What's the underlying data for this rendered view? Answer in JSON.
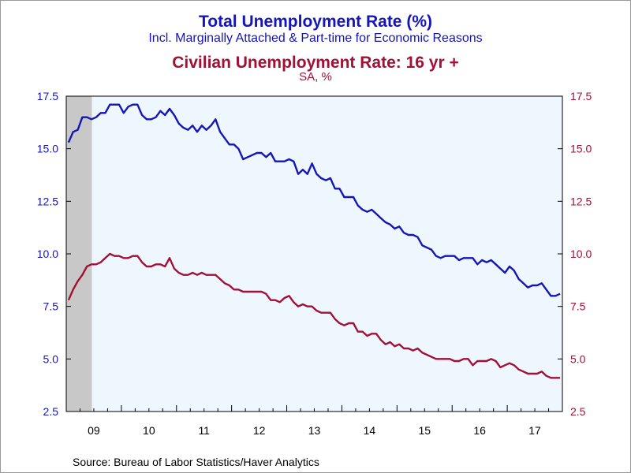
{
  "chart_data": {
    "type": "line",
    "title": "Total Unemployment Rate (%)",
    "subtitle": "Incl. Marginally Attached & Part-time for Economic Reasons",
    "title2": "Civilian Unemployment Rate: 16 yr +",
    "subtitle2": "SA, %",
    "source": "Source:  Bureau of Labor Statistics/Haver Analytics",
    "x_labels": [
      "09",
      "10",
      "11",
      "12",
      "13",
      "14",
      "15",
      "16",
      "17"
    ],
    "y_ticks": [
      "17.5",
      "15.0",
      "12.5",
      "10.0",
      "7.5",
      "5.0",
      "2.5"
    ],
    "ylim": [
      2.5,
      17.5
    ],
    "x_start": "2009-01",
    "x_end": "2017-12",
    "recession_shade": [
      "2009-01",
      "2009-06"
    ],
    "colors": {
      "total": "#1515b8",
      "civilian": "#a31035",
      "plot_bg": "#eef6fe",
      "shade": "#c8c8c8"
    },
    "series": [
      {
        "name": "Total Unemployment Rate (%)",
        "axis": "left",
        "color": "#1515b8",
        "values": [
          15.3,
          15.8,
          15.9,
          16.5,
          16.5,
          16.4,
          16.5,
          16.7,
          16.7,
          17.1,
          17.1,
          17.1,
          16.7,
          17.0,
          17.1,
          17.1,
          16.6,
          16.4,
          16.4,
          16.5,
          16.8,
          16.6,
          16.9,
          16.6,
          16.2,
          16.0,
          15.9,
          16.1,
          15.8,
          16.1,
          15.9,
          16.1,
          16.4,
          15.8,
          15.5,
          15.2,
          15.2,
          15.0,
          14.5,
          14.6,
          14.7,
          14.8,
          14.8,
          14.6,
          14.8,
          14.4,
          14.4,
          14.4,
          14.5,
          14.4,
          13.8,
          14.0,
          13.8,
          14.3,
          13.8,
          13.6,
          13.5,
          13.6,
          13.1,
          13.1,
          12.7,
          12.7,
          12.7,
          12.3,
          12.1,
          12.0,
          12.1,
          11.9,
          11.7,
          11.5,
          11.4,
          11.2,
          11.3,
          11.0,
          10.9,
          10.9,
          10.8,
          10.4,
          10.3,
          10.2,
          9.9,
          9.8,
          9.9,
          9.9,
          9.9,
          9.7,
          9.8,
          9.8,
          9.8,
          9.5,
          9.7,
          9.6,
          9.7,
          9.5,
          9.3,
          9.1,
          9.4,
          9.2,
          8.8,
          8.6,
          8.4,
          8.5,
          8.5,
          8.6,
          8.3,
          8.0,
          8.0,
          8.1
        ]
      },
      {
        "name": "Civilian Unemployment Rate: 16 yr +",
        "axis": "right",
        "color": "#a31035",
        "values": [
          7.8,
          8.3,
          8.7,
          9.0,
          9.4,
          9.5,
          9.5,
          9.6,
          9.8,
          10.0,
          9.9,
          9.9,
          9.8,
          9.8,
          9.9,
          9.9,
          9.6,
          9.4,
          9.4,
          9.5,
          9.5,
          9.4,
          9.8,
          9.3,
          9.1,
          9.0,
          9.0,
          9.1,
          9.0,
          9.1,
          9.0,
          9.0,
          9.0,
          8.8,
          8.6,
          8.5,
          8.3,
          8.3,
          8.2,
          8.2,
          8.2,
          8.2,
          8.2,
          8.1,
          7.8,
          7.8,
          7.7,
          7.9,
          8.0,
          7.7,
          7.5,
          7.6,
          7.5,
          7.5,
          7.3,
          7.2,
          7.2,
          7.2,
          6.9,
          6.7,
          6.6,
          6.7,
          6.7,
          6.3,
          6.3,
          6.1,
          6.2,
          6.2,
          5.9,
          5.7,
          5.8,
          5.6,
          5.7,
          5.5,
          5.5,
          5.4,
          5.5,
          5.3,
          5.2,
          5.1,
          5.0,
          5.0,
          5.0,
          5.0,
          4.9,
          4.9,
          5.0,
          5.0,
          4.7,
          4.9,
          4.9,
          4.9,
          5.0,
          4.9,
          4.6,
          4.7,
          4.8,
          4.7,
          4.5,
          4.4,
          4.3,
          4.3,
          4.3,
          4.4,
          4.2,
          4.1,
          4.1,
          4.1
        ]
      }
    ]
  }
}
